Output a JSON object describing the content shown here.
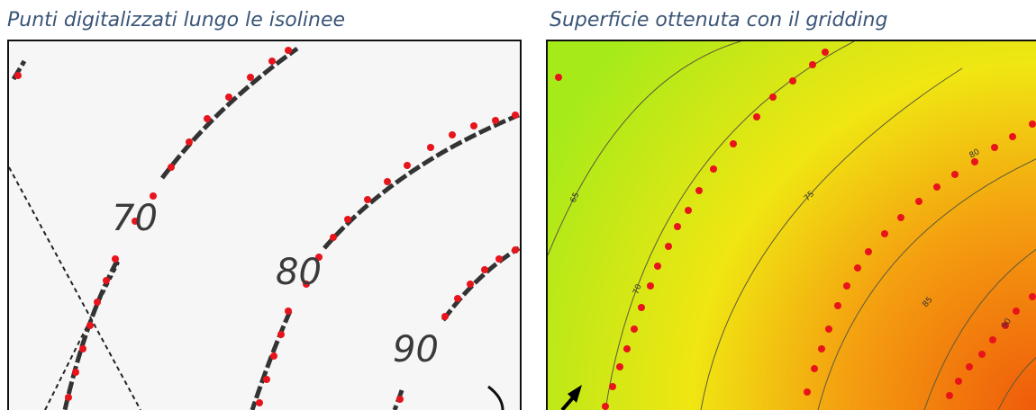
{
  "captions": {
    "left": "Punti digitalizzati lungo le isolinee",
    "right": "Superficie ottenuta con il gridding"
  },
  "left_panel": {
    "contour_labels": [
      "70",
      "80",
      "90"
    ]
  },
  "right_panel": {
    "contour_labels": [
      "65",
      "70",
      "75",
      "80",
      "85",
      "90"
    ]
  },
  "colors": {
    "digitized_points": "#e8141c",
    "isoline": "#333333",
    "gradient_low": "#a6ea1a",
    "gradient_mid": "#f0e612",
    "gradient_high": "#f05a0a",
    "caption": "#3a5577"
  }
}
